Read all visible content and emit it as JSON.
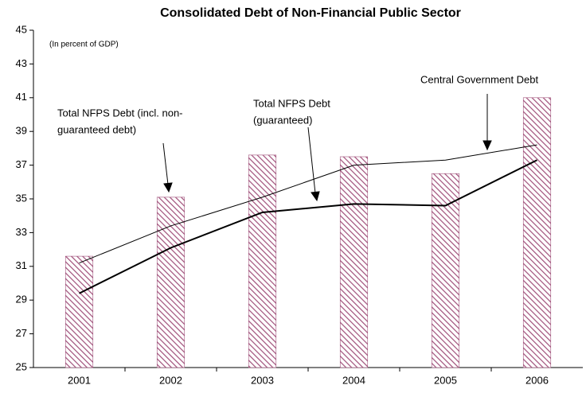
{
  "chart_data": {
    "type": "bar_line",
    "title": "Consolidated Debt of Non-Financial Public Sector",
    "subtitle": "(In percent of GDP)",
    "categories": [
      "2001",
      "2002",
      "2003",
      "2004",
      "2005",
      "2006"
    ],
    "series": [
      {
        "kind": "bar",
        "color": "#a0507a",
        "values": [
          31.6,
          35.1,
          37.6,
          37.5,
          36.5,
          41.0
        ]
      },
      {
        "kind": "line",
        "color": "#000000",
        "width": 1,
        "values": [
          31.2,
          33.4,
          35.1,
          37.0,
          37.3,
          38.2
        ]
      },
      {
        "kind": "line",
        "color": "#000000",
        "width": 2,
        "values": [
          29.4,
          32.1,
          34.2,
          34.7,
          34.6,
          37.3
        ]
      }
    ],
    "annotations": [
      {
        "lines": [
          "Total NFPS Debt (incl. non-",
          "guaranteed debt)"
        ]
      },
      {
        "lines": [
          "Total NFPS Debt",
          "(guaranteed)"
        ]
      },
      {
        "lines": [
          "Central Government Debt"
        ]
      }
    ],
    "ylim": [
      25,
      45
    ],
    "yticks": [
      25,
      27,
      29,
      31,
      33,
      35,
      37,
      39,
      41,
      43,
      45
    ],
    "grid": false
  }
}
